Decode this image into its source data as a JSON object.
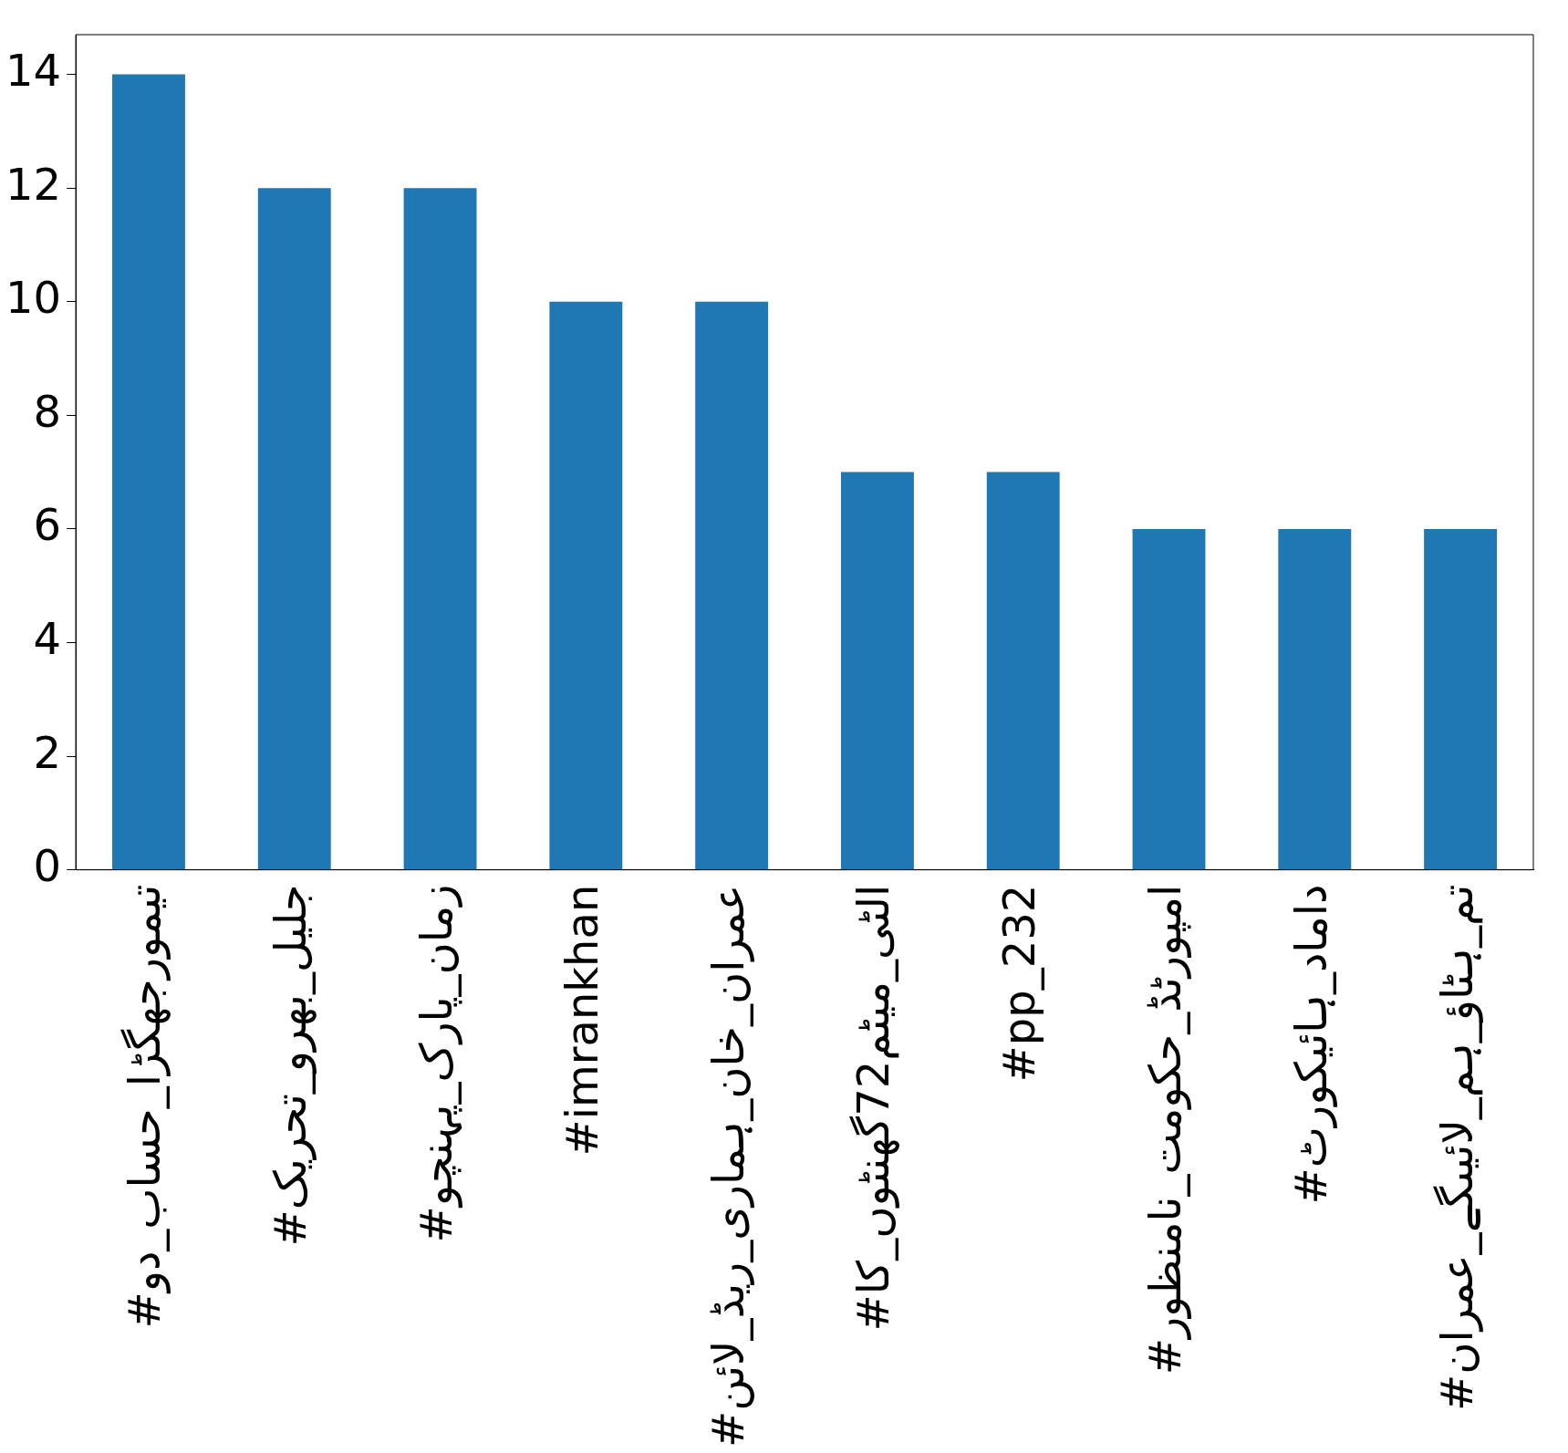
{
  "chart_data": {
    "type": "bar",
    "categories": [
      "#تیمورجھگڑا_حساب_دو",
      "#جلیل_بھرو_تحریک",
      "#زمان_پارک_پہنچو",
      "#imrankhan",
      "#عمران_خان_ہماری_ریڈ_لائن",
      "#الٹی_میٹم72گھنٹوں_کا",
      "#pp_232",
      "#امپورٹڈ_حکومت_نامنظور",
      "#داماد_ہائیکورٹ",
      "#تم_ہٹاؤ_ہم_لائیںگے_عمران"
    ],
    "values": [
      14,
      12,
      12,
      10,
      10,
      7,
      7,
      6,
      6,
      6
    ],
    "color": "#1f77b4",
    "ylim": [
      0,
      14.7
    ],
    "yticks": [
      0,
      2,
      4,
      6,
      8,
      10,
      12,
      14
    ],
    "grid": false,
    "legend": false
  }
}
